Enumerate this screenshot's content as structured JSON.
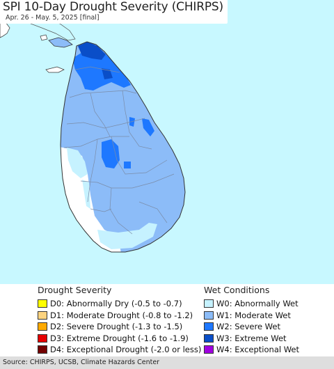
{
  "map": {
    "title": "SPI 10-Day Drought Severity (CHIRPS)",
    "subtitle": "Apr. 26 - May. 5, 2025 [final]"
  },
  "legend": {
    "drought": {
      "heading": "Drought Severity",
      "items": [
        {
          "label": "D0: Abnormally Dry (-0.5 to -0.7)",
          "color": "#ffff00"
        },
        {
          "label": "D1: Moderate Drought (-0.8 to -1.2)",
          "color": "#fcd37f"
        },
        {
          "label": "D2: Severe Drought (-1.3 to -1.5)",
          "color": "#ffaa00"
        },
        {
          "label": "D3: Extreme Drought (-1.6 to -1.9)",
          "color": "#e60000"
        },
        {
          "label": "D4: Exceptional Drought (-2.0 or less)",
          "color": "#730000"
        }
      ]
    },
    "wet": {
      "heading": "Wet Conditions",
      "items": [
        {
          "label": "W0: Abnormally Wet",
          "color": "#c6f2ff"
        },
        {
          "label": "W1: Moderate Wet",
          "color": "#8cbcf8"
        },
        {
          "label": "W2: Severe Wet",
          "color": "#1e78ff"
        },
        {
          "label": "W3: Extreme Wet",
          "color": "#0a4ec8"
        },
        {
          "label": "W4: Exceptional Wet",
          "color": "#a000e0"
        }
      ]
    }
  },
  "footer": {
    "source": "Source: CHIRPS, UCSB, Climate Hazards Center"
  }
}
